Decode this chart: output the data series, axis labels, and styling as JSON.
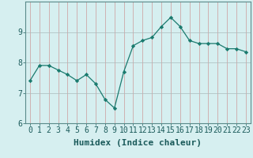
{
  "x": [
    0,
    1,
    2,
    3,
    4,
    5,
    6,
    7,
    8,
    9,
    10,
    11,
    12,
    13,
    14,
    15,
    16,
    17,
    18,
    19,
    20,
    21,
    22,
    23
  ],
  "y": [
    7.4,
    7.9,
    7.9,
    7.75,
    7.6,
    7.4,
    7.6,
    7.3,
    6.78,
    6.5,
    7.7,
    8.55,
    8.72,
    8.82,
    9.18,
    9.48,
    9.18,
    8.72,
    8.62,
    8.62,
    8.62,
    8.45,
    8.45,
    8.35
  ],
  "xlabel": "Humidex (Indice chaleur)",
  "ylim": [
    6,
    10
  ],
  "xlim": [
    -0.5,
    23.5
  ],
  "yticks": [
    6,
    7,
    8,
    9
  ],
  "xticks": [
    0,
    1,
    2,
    3,
    4,
    5,
    6,
    7,
    8,
    9,
    10,
    11,
    12,
    13,
    14,
    15,
    16,
    17,
    18,
    19,
    20,
    21,
    22,
    23
  ],
  "line_color": "#1a7a6e",
  "marker": "D",
  "marker_size": 2.2,
  "bg_color": "#d6eff0",
  "vgrid_color": "#cc9999",
  "hgrid_color": "#aabbbb",
  "xlabel_fontsize": 8,
  "tick_fontsize": 7,
  "spine_color": "#5a8a8a"
}
